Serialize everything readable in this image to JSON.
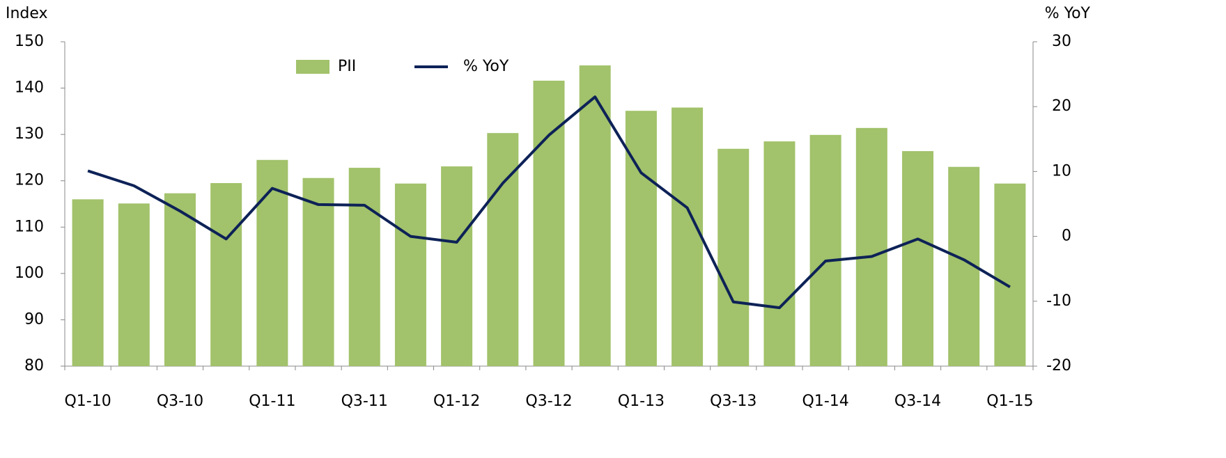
{
  "chart_data": {
    "type": "bar_line",
    "y_label": "Index",
    "y2_label": "% YoY",
    "categories": [
      "Q1-10",
      null,
      "Q3-10",
      null,
      "Q1-11",
      null,
      "Q3-11",
      null,
      "Q1-12",
      null,
      "Q3-12",
      null,
      "Q1-13",
      null,
      "Q3-13",
      null,
      "Q1-14",
      null,
      "Q3-14",
      null,
      "Q1-15"
    ],
    "series": [
      {
        "name": "PII",
        "type": "bar",
        "color": "#a2c26b",
        "values": [
          116.0,
          115.1,
          117.3,
          119.5,
          124.5,
          120.6,
          122.8,
          119.4,
          123.1,
          130.3,
          141.6,
          144.9,
          135.1,
          135.8,
          126.9,
          128.5,
          129.9,
          131.4,
          126.4,
          123.0,
          119.4
        ]
      },
      {
        "name": "% YoY",
        "type": "line",
        "axis": "y2",
        "color": "#0d2257",
        "values": [
          10.1,
          7.8,
          3.9,
          -0.4,
          7.4,
          4.9,
          4.8,
          0.0,
          -0.9,
          8.2,
          15.6,
          21.5,
          9.8,
          4.4,
          -10.1,
          -11.0,
          -3.8,
          -3.1,
          -0.4,
          -3.6,
          -7.8
        ]
      }
    ],
    "ylim": [
      80,
      150
    ],
    "yticks": [
      80,
      90,
      100,
      110,
      120,
      130,
      140,
      150
    ],
    "y2lim": [
      -20,
      30
    ],
    "y2ticks": [
      -20,
      -10,
      0,
      10,
      20,
      30
    ],
    "legend": "top"
  }
}
